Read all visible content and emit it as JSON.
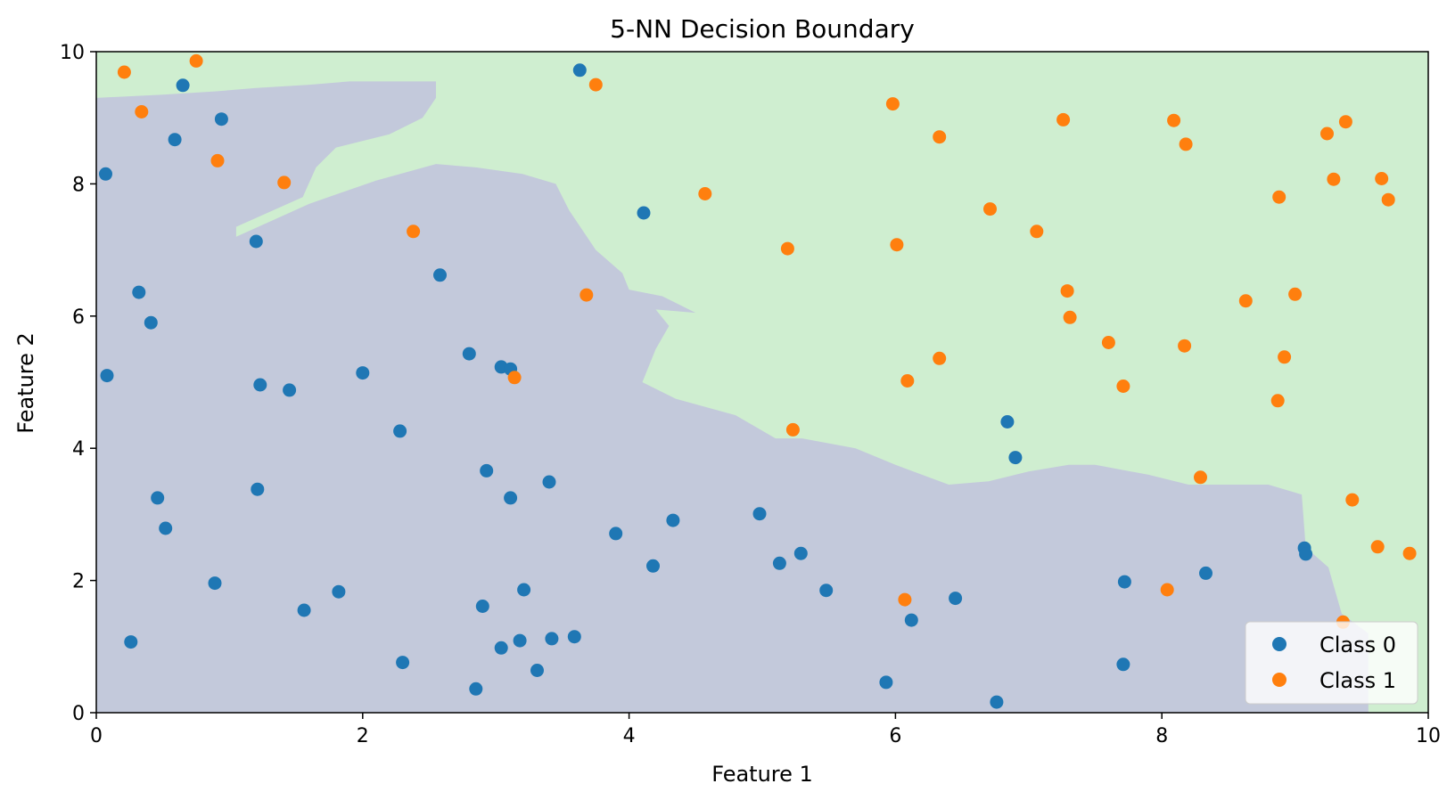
{
  "chart_data": {
    "type": "scatter",
    "title": "5-NN Decision Boundary",
    "xlabel": "Feature 1",
    "ylabel": "Feature 2",
    "xlim": [
      0,
      10
    ],
    "ylim": [
      0,
      10
    ],
    "xticks": [
      0,
      2,
      4,
      6,
      8,
      10
    ],
    "yticks": [
      0,
      2,
      4,
      6,
      8,
      10
    ],
    "grid": false,
    "legend_position": "lower-right",
    "region_colors": {
      "class_0": "#c3c9db",
      "class_1": "#cfeed0"
    },
    "region_boundary_class1": [
      [
        0,
        10
      ],
      [
        10,
        10
      ],
      [
        10,
        0
      ],
      [
        9.55,
        0
      ],
      [
        9.55,
        1.2
      ],
      [
        9.35,
        1.5
      ],
      [
        9.25,
        2.2
      ],
      [
        9.08,
        2.5
      ],
      [
        9.05,
        3.3
      ],
      [
        8.8,
        3.45
      ],
      [
        8.2,
        3.45
      ],
      [
        7.9,
        3.6
      ],
      [
        7.5,
        3.75
      ],
      [
        7.3,
        3.75
      ],
      [
        7.0,
        3.65
      ],
      [
        6.7,
        3.5
      ],
      [
        6.4,
        3.45
      ],
      [
        6.0,
        3.75
      ],
      [
        5.7,
        4.0
      ],
      [
        5.3,
        4.15
      ],
      [
        5.1,
        4.15
      ],
      [
        4.8,
        4.5
      ],
      [
        4.35,
        4.75
      ],
      [
        4.1,
        5.0
      ],
      [
        4.2,
        5.5
      ],
      [
        4.3,
        5.85
      ],
      [
        4.2,
        6.1
      ],
      [
        4.5,
        6.05
      ],
      [
        4.25,
        6.3
      ],
      [
        4.0,
        6.4
      ],
      [
        3.95,
        6.65
      ],
      [
        3.75,
        7.0
      ],
      [
        3.55,
        7.6
      ],
      [
        3.45,
        8.0
      ],
      [
        3.2,
        8.15
      ],
      [
        2.85,
        8.25
      ],
      [
        2.55,
        8.3
      ],
      [
        2.1,
        8.05
      ],
      [
        1.6,
        7.7
      ],
      [
        1.05,
        7.2
      ],
      [
        1.05,
        7.35
      ],
      [
        1.55,
        7.8
      ],
      [
        1.65,
        8.25
      ],
      [
        1.8,
        8.55
      ],
      [
        2.2,
        8.75
      ],
      [
        2.45,
        9.0
      ],
      [
        2.55,
        9.3
      ],
      [
        2.55,
        9.55
      ],
      [
        1.9,
        9.55
      ],
      [
        1.6,
        9.5
      ],
      [
        1.2,
        9.45
      ],
      [
        0.9,
        9.4
      ],
      [
        0.5,
        9.35
      ],
      [
        0.0,
        9.3
      ]
    ],
    "series": [
      {
        "name": "Class 0",
        "color": "#1f77b4",
        "points": [
          [
            3.63,
            9.72
          ],
          [
            0.65,
            9.49
          ],
          [
            0.94,
            8.98
          ],
          [
            0.59,
            8.67
          ],
          [
            0.07,
            8.15
          ],
          [
            4.11,
            7.56
          ],
          [
            1.2,
            7.13
          ],
          [
            2.58,
            6.62
          ],
          [
            0.32,
            6.36
          ],
          [
            0.41,
            5.9
          ],
          [
            0.08,
            5.1
          ],
          [
            2.8,
            5.43
          ],
          [
            3.04,
            5.23
          ],
          [
            3.11,
            5.2
          ],
          [
            2.0,
            5.14
          ],
          [
            1.23,
            4.96
          ],
          [
            1.45,
            4.88
          ],
          [
            2.28,
            4.26
          ],
          [
            2.93,
            3.66
          ],
          [
            3.4,
            3.49
          ],
          [
            1.21,
            3.38
          ],
          [
            0.46,
            3.25
          ],
          [
            3.11,
            3.25
          ],
          [
            4.33,
            2.91
          ],
          [
            4.98,
            3.01
          ],
          [
            0.52,
            2.79
          ],
          [
            3.9,
            2.71
          ],
          [
            5.29,
            2.41
          ],
          [
            5.13,
            2.26
          ],
          [
            4.18,
            2.22
          ],
          [
            0.89,
            1.96
          ],
          [
            3.21,
            1.86
          ],
          [
            1.82,
            1.83
          ],
          [
            5.48,
            1.85
          ],
          [
            2.9,
            1.61
          ],
          [
            1.56,
            1.55
          ],
          [
            3.42,
            1.12
          ],
          [
            3.59,
            1.15
          ],
          [
            3.18,
            1.09
          ],
          [
            3.04,
            0.98
          ],
          [
            0.26,
            1.07
          ],
          [
            2.3,
            0.76
          ],
          [
            3.31,
            0.64
          ],
          [
            2.85,
            0.36
          ],
          [
            6.84,
            4.4
          ],
          [
            6.9,
            3.86
          ],
          [
            9.07,
            2.49
          ],
          [
            9.08,
            2.4
          ],
          [
            8.33,
            2.11
          ],
          [
            7.72,
            1.98
          ],
          [
            6.45,
            1.73
          ],
          [
            6.12,
            1.4
          ],
          [
            7.71,
            0.73
          ],
          [
            5.93,
            0.46
          ],
          [
            6.76,
            0.16
          ]
        ]
      },
      {
        "name": "Class 1",
        "color": "#ff7f0e",
        "points": [
          [
            0.21,
            9.69
          ],
          [
            0.75,
            9.86
          ],
          [
            0.34,
            9.09
          ],
          [
            0.91,
            8.35
          ],
          [
            1.41,
            8.02
          ],
          [
            3.75,
            9.5
          ],
          [
            2.38,
            7.28
          ],
          [
            4.57,
            7.85
          ],
          [
            3.68,
            6.32
          ],
          [
            3.14,
            5.07
          ],
          [
            5.98,
            9.21
          ],
          [
            6.33,
            8.71
          ],
          [
            7.26,
            8.97
          ],
          [
            8.09,
            8.96
          ],
          [
            8.18,
            8.6
          ],
          [
            9.24,
            8.76
          ],
          [
            9.38,
            8.94
          ],
          [
            9.29,
            8.07
          ],
          [
            9.65,
            8.08
          ],
          [
            9.7,
            7.76
          ],
          [
            8.88,
            7.8
          ],
          [
            6.71,
            7.62
          ],
          [
            7.06,
            7.28
          ],
          [
            6.01,
            7.08
          ],
          [
            5.19,
            7.02
          ],
          [
            7.29,
            6.38
          ],
          [
            7.31,
            5.98
          ],
          [
            8.63,
            6.23
          ],
          [
            9.0,
            6.33
          ],
          [
            7.6,
            5.6
          ],
          [
            8.17,
            5.55
          ],
          [
            6.33,
            5.36
          ],
          [
            8.92,
            5.38
          ],
          [
            6.09,
            5.02
          ],
          [
            7.71,
            4.94
          ],
          [
            8.87,
            4.72
          ],
          [
            5.23,
            4.28
          ],
          [
            8.29,
            3.56
          ],
          [
            9.43,
            3.22
          ],
          [
            9.62,
            2.51
          ],
          [
            9.86,
            2.41
          ],
          [
            6.07,
            1.71
          ],
          [
            8.04,
            1.86
          ],
          [
            9.36,
            1.37
          ]
        ]
      }
    ]
  }
}
